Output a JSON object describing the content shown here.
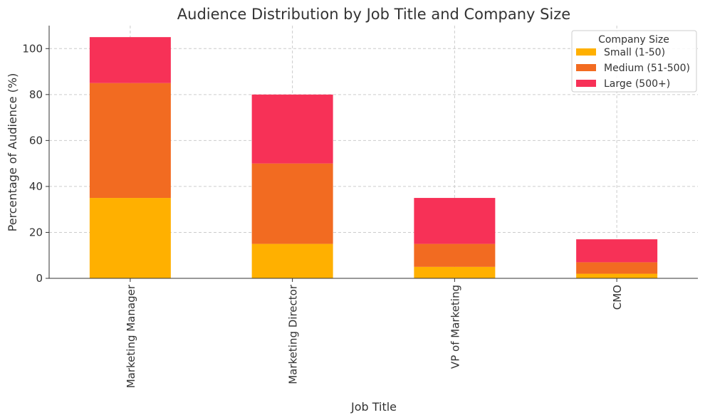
{
  "chart_data": {
    "type": "bar",
    "stacked": true,
    "title": "Audience Distribution by Job Title and Company Size",
    "xlabel": "Job Title",
    "ylabel": "Percentage of Audience (%)",
    "ylim": [
      0,
      110
    ],
    "yticks": [
      0,
      20,
      40,
      60,
      80,
      100
    ],
    "grid": true,
    "categories": [
      "Marketing Manager",
      "Marketing Director",
      "VP of Marketing",
      "CMO"
    ],
    "series": [
      {
        "name": "Small (1-50)",
        "color": "#FFB000",
        "values": [
          35,
          15,
          5,
          2
        ]
      },
      {
        "name": "Medium (51-500)",
        "color": "#F26B21",
        "values": [
          50,
          35,
          10,
          5
        ]
      },
      {
        "name": "Large (500+)",
        "color": "#F73157",
        "values": [
          20,
          30,
          20,
          10
        ]
      }
    ],
    "legend": {
      "title": "Company Size",
      "placement": "top-right"
    }
  }
}
